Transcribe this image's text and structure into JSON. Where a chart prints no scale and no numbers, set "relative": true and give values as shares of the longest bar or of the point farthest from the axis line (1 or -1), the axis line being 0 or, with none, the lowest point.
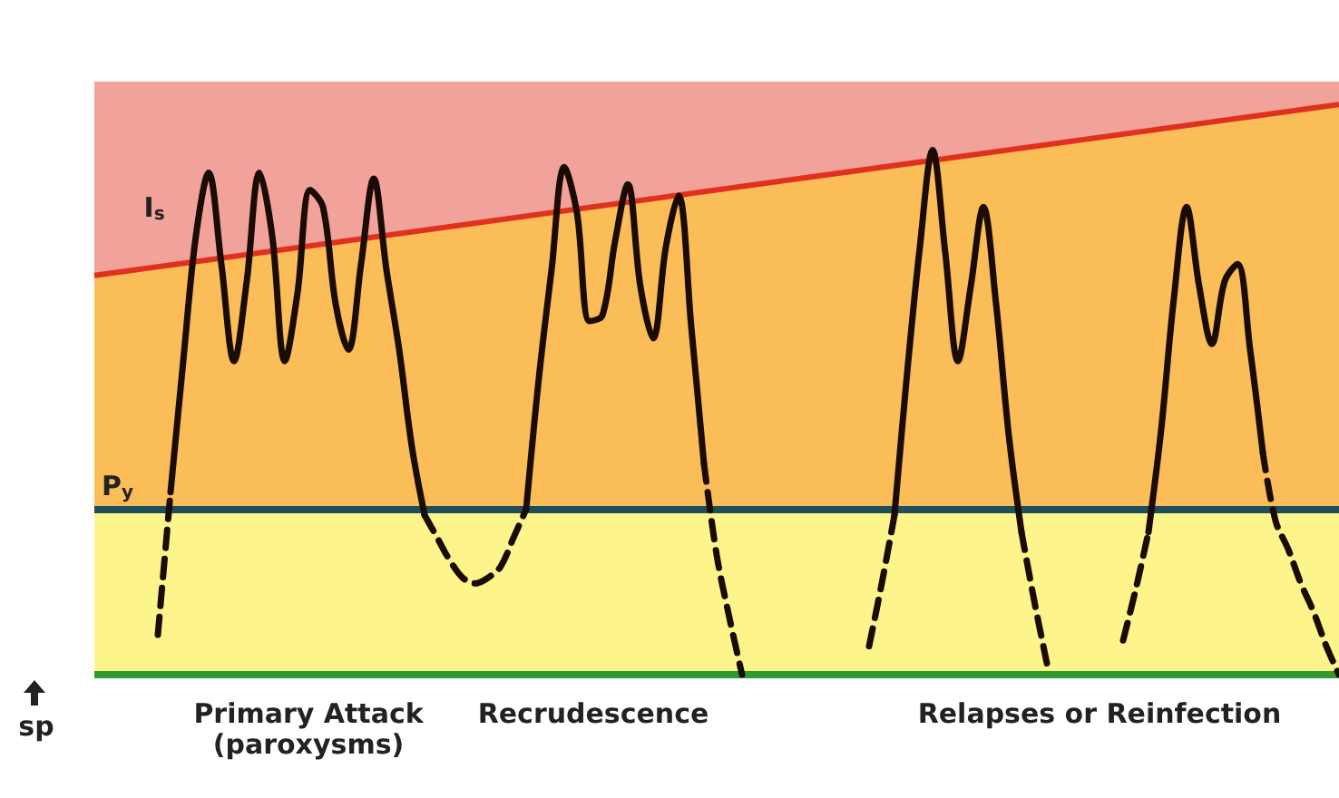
{
  "chart_data": {
    "type": "line",
    "relative": true,
    "marker": "none",
    "tick_labels": false,
    "categories": [
      null,
      null,
      null,
      null,
      null,
      null,
      null,
      null,
      null,
      null,
      null,
      null,
      null,
      null,
      null,
      null,
      null,
      null,
      null,
      null,
      null,
      null,
      null,
      null,
      null,
      null,
      null,
      null,
      null,
      null,
      null,
      null,
      null,
      null,
      null,
      null,
      null,
      null,
      null,
      null,
      null,
      null,
      null,
      null,
      null,
      null,
      null,
      null,
      null,
      null,
      null,
      null,
      null,
      null,
      null,
      null,
      null,
      null,
      null,
      null,
      null,
      null,
      null,
      null,
      null,
      null,
      null,
      null,
      null,
      null,
      null,
      null,
      null,
      null,
      null,
      null,
      null,
      null,
      null,
      null,
      null,
      null,
      null,
      null,
      null,
      null,
      null,
      null,
      null,
      null,
      null,
      null,
      null,
      null,
      null,
      null,
      null,
      null,
      null
    ],
    "series": [
      {
        "type": "area",
        "color": "#e0301e",
        "values": [
          0.7,
          null,
          null,
          null,
          null,
          null,
          null,
          null,
          null,
          null,
          null,
          null,
          null,
          null,
          null,
          null,
          null,
          null,
          null,
          null,
          null,
          null,
          null,
          null,
          null,
          null,
          null,
          null,
          null,
          null,
          null,
          null,
          null,
          null,
          null,
          null,
          null,
          null,
          null,
          null,
          null,
          null,
          null,
          null,
          null,
          null,
          null,
          null,
          null,
          null,
          null,
          null,
          null,
          null,
          null,
          null,
          null,
          null,
          null,
          null,
          null,
          null,
          null,
          null,
          null,
          null,
          null,
          null,
          null,
          null,
          null,
          null,
          null,
          null,
          null,
          null,
          null,
          null,
          null,
          null,
          null,
          null,
          null,
          null,
          null,
          null,
          null,
          null,
          null,
          null,
          null,
          null,
          null,
          null,
          null,
          null,
          null,
          null,
          1.0
        ]
      },
      {
        "color": "#1a0c05",
        "line_style": "solid",
        "values": [
          null,
          null,
          null,
          null,
          null,
          null,
          0.32,
          0.55,
          0.77,
          0.88,
          0.72,
          0.55,
          0.69,
          0.88,
          0.77,
          0.55,
          0.67,
          0.85,
          0.82,
          0.65,
          0.57,
          0.72,
          0.87,
          0.71,
          0.57,
          0.4,
          0.28,
          null,
          null,
          null,
          null,
          null,
          null,
          null,
          0.29,
          0.52,
          0.71,
          0.89,
          0.81,
          0.62,
          0.63,
          0.76,
          0.86,
          0.68,
          0.59,
          0.75,
          0.84,
          0.61,
          0.37,
          null,
          null,
          null,
          null,
          null,
          null,
          null,
          null,
          null,
          null,
          null,
          null,
          null,
          null,
          0.28,
          0.53,
          0.75,
          0.92,
          0.74,
          0.55,
          0.68,
          0.82,
          0.65,
          0.42,
          0.25,
          null,
          null,
          null,
          null,
          null,
          null,
          null,
          null,
          null,
          0.25,
          0.43,
          0.66,
          0.82,
          0.68,
          0.58,
          0.69,
          0.72,
          0.57,
          0.39,
          null,
          null,
          null,
          null,
          null,
          null
        ]
      },
      {
        "color": "#1a0c05",
        "line_style": "dashed",
        "values": [
          null,
          null,
          null,
          null,
          null,
          0.07,
          0.32,
          null,
          null,
          null,
          null,
          null,
          null,
          null,
          null,
          null,
          null,
          null,
          null,
          null,
          null,
          null,
          null,
          null,
          null,
          null,
          0.28,
          0.24,
          0.2,
          0.17,
          0.16,
          0.17,
          0.19,
          0.24,
          0.29,
          null,
          null,
          null,
          null,
          null,
          null,
          null,
          null,
          null,
          null,
          null,
          null,
          null,
          0.37,
          0.21,
          0.1,
          0,
          null,
          null,
          null,
          null,
          null,
          null,
          null,
          null,
          null,
          0.05,
          0.16,
          0.28,
          null,
          null,
          null,
          null,
          null,
          null,
          null,
          null,
          null,
          0.25,
          0.13,
          0.02,
          null,
          null,
          null,
          null,
          null,
          0.06,
          0.15,
          0.25,
          null,
          null,
          null,
          null,
          null,
          null,
          null,
          null,
          0.39,
          0.27,
          0.22,
          0.16,
          0.11,
          0.05,
          0
        ]
      }
    ],
    "bands": [
      {
        "axis": "y",
        "from": 0,
        "to": 0.29,
        "color": "#fdf48c"
      },
      {
        "axis": "y",
        "from": 0.29,
        "to": 1.04,
        "color": "#fbbd58"
      }
    ],
    "ref_lines": [
      {
        "axis": "y",
        "value": 0.29,
        "label": "P$_{y}$",
        "color": "#1f4f5c"
      },
      {
        "axis": "y",
        "value": 0,
        "color": "#2f9a2f"
      }
    ],
    "annotations": [
      "sp",
      "Primary Attack\n(paroxysms)",
      "Recrudescence",
      "Relapses or Reinfection",
      "I$_{s}$"
    ]
  }
}
